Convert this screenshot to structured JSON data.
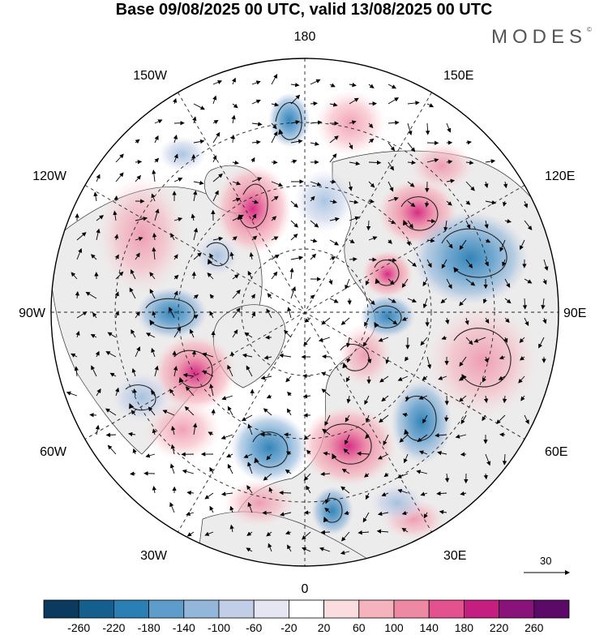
{
  "title": "Base 09/08/2025 00 UTC, valid 13/08/2025 00 UTC",
  "brand": "MODES",
  "brand_mark": "©",
  "longitude_labels": {
    "top": "180",
    "bottom": "0",
    "left": "90W",
    "right": "90E",
    "ul1": "150W",
    "ul2": "120W",
    "ur1": "150E",
    "ur2": "120E",
    "ll1": "60W",
    "ll2": "30W",
    "lr1": "60E",
    "lr2": "30E"
  },
  "wind_scale": {
    "label": "30",
    "icon": "arrow-right-icon"
  },
  "colorbar": {
    "labels": [
      "-260",
      "-220",
      "-180",
      "-140",
      "-100",
      "-60",
      "-20",
      "20",
      "60",
      "100",
      "140",
      "180",
      "220",
      "260"
    ],
    "colors": [
      "#0b3a5e",
      "#155f8f",
      "#2a7fb5",
      "#5d9ccb",
      "#93b7da",
      "#c2cde7",
      "#e6e6f3",
      "#ffffff",
      "#fbdcdf",
      "#f5b3bd",
      "#ee89a4",
      "#e3518e",
      "#c41f80",
      "#8a137a",
      "#5b0a68"
    ]
  },
  "map_colors": {
    "land": "#ececec",
    "ocean": "#ffffff",
    "positive": "#e3518e",
    "negative": "#2a7fb5"
  }
}
